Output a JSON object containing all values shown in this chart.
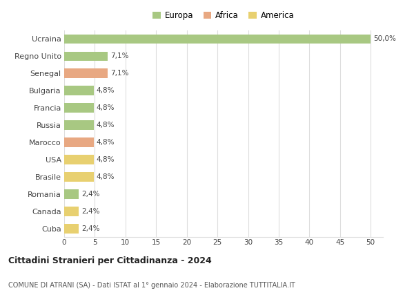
{
  "countries": [
    "Ucraina",
    "Regno Unito",
    "Senegal",
    "Bulgaria",
    "Francia",
    "Russia",
    "Marocco",
    "USA",
    "Brasile",
    "Romania",
    "Canada",
    "Cuba"
  ],
  "values": [
    50.0,
    7.1,
    7.1,
    4.8,
    4.8,
    4.8,
    4.8,
    4.8,
    4.8,
    2.4,
    2.4,
    2.4
  ],
  "labels": [
    "50,0%",
    "7,1%",
    "7,1%",
    "4,8%",
    "4,8%",
    "4,8%",
    "4,8%",
    "4,8%",
    "4,8%",
    "2,4%",
    "2,4%",
    "2,4%"
  ],
  "continents": [
    "Europa",
    "Europa",
    "Africa",
    "Europa",
    "Europa",
    "Europa",
    "Africa",
    "America",
    "America",
    "Europa",
    "America",
    "America"
  ],
  "colors": {
    "Europa": "#a8c882",
    "Africa": "#e8a882",
    "America": "#e8d070"
  },
  "legend_labels": [
    "Europa",
    "Africa",
    "America"
  ],
  "title": "Cittadini Stranieri per Cittadinanza - 2024",
  "subtitle": "COMUNE DI ATRANI (SA) - Dati ISTAT al 1° gennaio 2024 - Elaborazione TUTTITALIA.IT",
  "xlim": [
    0,
    52
  ],
  "xticks": [
    0,
    5,
    10,
    15,
    20,
    25,
    30,
    35,
    40,
    45,
    50
  ],
  "background_color": "#ffffff",
  "grid_color": "#dddddd",
  "bar_height": 0.55
}
